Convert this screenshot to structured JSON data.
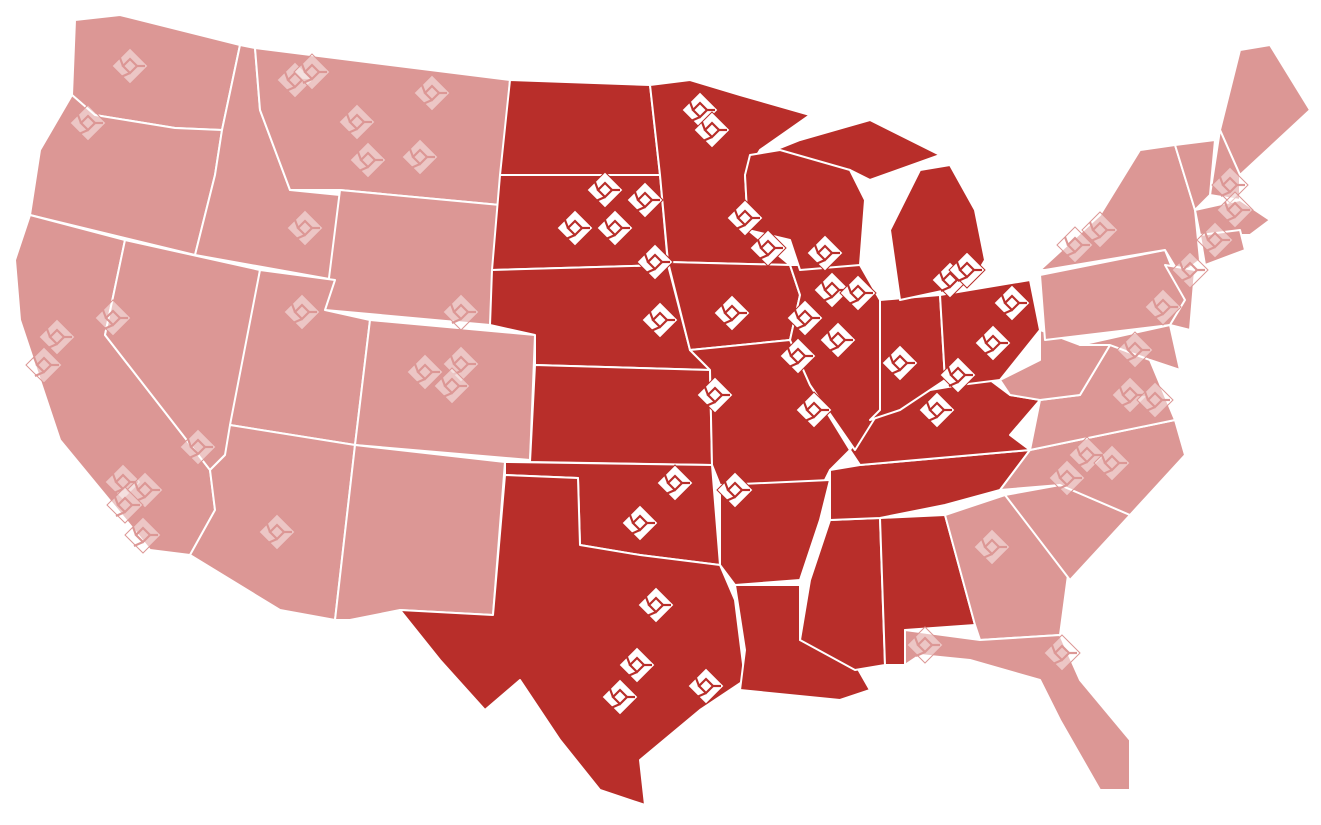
{
  "colors": {
    "active_state": "#b82e2a",
    "inactive_state": "#dc9795",
    "border": "#ffffff",
    "marker_active": "#ffffff",
    "marker_inactive": "rgba(255,255,255,0.45)"
  },
  "marker_icon": "diamond-location-icon",
  "states": [
    {
      "code": "WA",
      "status": "inactive"
    },
    {
      "code": "OR",
      "status": "inactive"
    },
    {
      "code": "CA",
      "status": "inactive"
    },
    {
      "code": "NV",
      "status": "inactive"
    },
    {
      "code": "ID",
      "status": "inactive"
    },
    {
      "code": "MT",
      "status": "inactive"
    },
    {
      "code": "WY",
      "status": "inactive"
    },
    {
      "code": "UT",
      "status": "inactive"
    },
    {
      "code": "CO",
      "status": "inactive"
    },
    {
      "code": "AZ",
      "status": "inactive"
    },
    {
      "code": "NM",
      "status": "inactive"
    },
    {
      "code": "ND",
      "status": "active"
    },
    {
      "code": "SD",
      "status": "active"
    },
    {
      "code": "NE",
      "status": "active"
    },
    {
      "code": "KS",
      "status": "active"
    },
    {
      "code": "OK",
      "status": "active"
    },
    {
      "code": "TX",
      "status": "active"
    },
    {
      "code": "MN",
      "status": "active"
    },
    {
      "code": "IA",
      "status": "active"
    },
    {
      "code": "MO",
      "status": "active"
    },
    {
      "code": "AR",
      "status": "active"
    },
    {
      "code": "LA",
      "status": "active"
    },
    {
      "code": "MS",
      "status": "active"
    },
    {
      "code": "AL",
      "status": "active"
    },
    {
      "code": "TN",
      "status": "active"
    },
    {
      "code": "KY",
      "status": "active"
    },
    {
      "code": "IL",
      "status": "active"
    },
    {
      "code": "IN",
      "status": "active"
    },
    {
      "code": "OH",
      "status": "active"
    },
    {
      "code": "MI",
      "status": "active"
    },
    {
      "code": "WI",
      "status": "active"
    },
    {
      "code": "GA",
      "status": "inactive"
    },
    {
      "code": "FL",
      "status": "inactive"
    },
    {
      "code": "SC",
      "status": "inactive"
    },
    {
      "code": "NC",
      "status": "inactive"
    },
    {
      "code": "VA",
      "status": "inactive"
    },
    {
      "code": "WV",
      "status": "inactive"
    },
    {
      "code": "PA",
      "status": "inactive"
    },
    {
      "code": "NY",
      "status": "inactive"
    },
    {
      "code": "NJ",
      "status": "inactive"
    },
    {
      "code": "MD",
      "status": "inactive"
    },
    {
      "code": "ME",
      "status": "inactive"
    },
    {
      "code": "NH",
      "status": "inactive"
    },
    {
      "code": "VT",
      "status": "inactive"
    },
    {
      "code": "MA",
      "status": "inactive"
    },
    {
      "code": "CT",
      "status": "inactive"
    }
  ]
}
